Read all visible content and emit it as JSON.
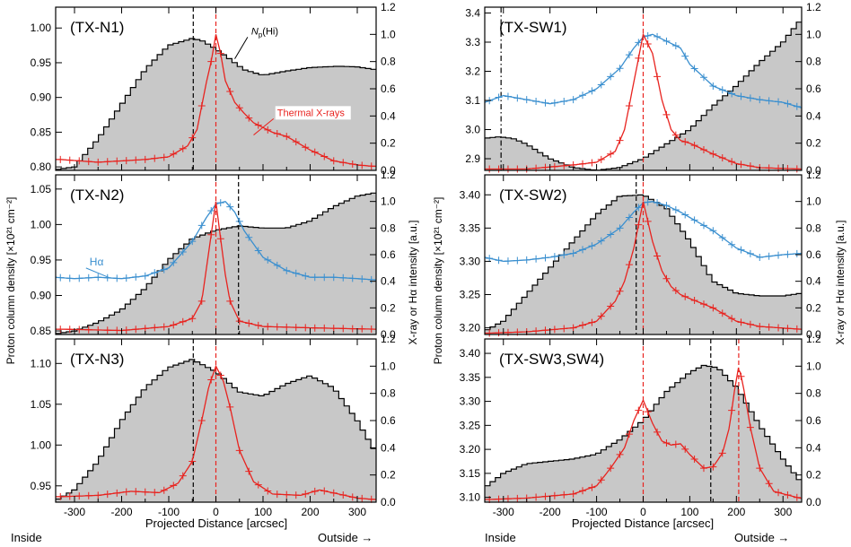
{
  "figure": {
    "left_ylabel": "Proton column density [×10²¹ cm⁻²]",
    "right_ylabel": "X-ray or Hα intensity [a.u.]",
    "xlabel": "Projected Distance [arcsec]",
    "inside_label": "Inside",
    "outside_label": "Outside →"
  },
  "colors": {
    "hist_fill": "#c8c8c8",
    "hist_line": "#000000",
    "xray": "#e8231f",
    "halpha": "#3a8fcf",
    "vline_black": "#000000",
    "vline_red": "#e8231f"
  },
  "chart_data": [
    {
      "id": "TX-N1",
      "type": "line",
      "title": "(TX-N1)",
      "xlim": [
        -340,
        340
      ],
      "xticks": [
        -300,
        -200,
        -100,
        0,
        100,
        200,
        300
      ],
      "ylim": [
        0.795,
        1.03
      ],
      "yticks": [
        0.8,
        0.85,
        0.9,
        0.95,
        1.0
      ],
      "ytick_labels": [
        "0.80",
        "0.85",
        "0.90",
        "0.95",
        "1.00"
      ],
      "y2lim": [
        0.0,
        1.2
      ],
      "y2ticks": [
        0.0,
        0.2,
        0.4,
        0.6,
        0.8,
        1.0,
        1.2
      ],
      "y2tick_labels": [
        "0.0",
        "0.2",
        "0.4",
        "0.6",
        "0.8",
        "1.0",
        "1.2"
      ],
      "show_xlabels": false,
      "vlines": [
        {
          "x": -48,
          "color": "black",
          "style": "dash"
        },
        {
          "x": 0,
          "color": "red",
          "style": "dash"
        }
      ],
      "np_hi": {
        "x": [
          -340,
          -300,
          -250,
          -200,
          -150,
          -100,
          -50,
          -30,
          0,
          30,
          60,
          100,
          150,
          200,
          260,
          300,
          340
        ],
        "y": [
          0.796,
          0.8,
          0.84,
          0.89,
          0.94,
          0.975,
          0.985,
          0.982,
          0.97,
          0.955,
          0.94,
          0.932,
          0.938,
          0.943,
          0.945,
          0.944,
          0.94
        ]
      },
      "xray": {
        "x": [
          -330,
          -250,
          -150,
          -100,
          -60,
          -40,
          -20,
          -10,
          0,
          10,
          20,
          40,
          60,
          80,
          120,
          150,
          200,
          250,
          300,
          335
        ],
        "y": [
          0.08,
          0.06,
          0.08,
          0.1,
          0.18,
          0.3,
          0.65,
          0.8,
          1.0,
          0.86,
          0.66,
          0.5,
          0.42,
          0.35,
          0.28,
          0.25,
          0.15,
          0.07,
          0.04,
          0.03
        ]
      },
      "annotations": [
        {
          "text": "N_p(Hi)",
          "main": "N",
          "sub": "p",
          "tail": "(Hi)",
          "x": 75,
          "y2": 1.0,
          "color": "black",
          "arrow_to_x": 40,
          "arrow_to_y2": 0.82
        },
        {
          "text": "Thermal X-rays",
          "x": 130,
          "y2": 0.4,
          "color": "red",
          "arrow_to_x": 80,
          "arrow_to_y2": 0.26
        }
      ]
    },
    {
      "id": "TX-N2",
      "type": "line",
      "title": "(TX-N2)",
      "xlim": [
        -340,
        340
      ],
      "xticks": [
        -300,
        -200,
        -100,
        0,
        100,
        200,
        300
      ],
      "ylim": [
        0.845,
        1.07
      ],
      "yticks": [
        0.85,
        0.9,
        0.95,
        1.0,
        1.05
      ],
      "ytick_labels": [
        "0.85",
        "0.90",
        "0.95",
        "1.00",
        "1.05"
      ],
      "y2lim": [
        0.0,
        1.2
      ],
      "y2ticks": [
        0.0,
        0.2,
        0.4,
        0.6,
        0.8,
        1.0,
        1.2
      ],
      "y2tick_labels": [
        "0.0",
        "0.2",
        "0.4",
        "0.6",
        "0.8",
        "1.0",
        "1.2"
      ],
      "show_xlabels": false,
      "vlines": [
        {
          "x": 48,
          "color": "black",
          "style": "dash"
        },
        {
          "x": 0,
          "color": "red",
          "style": "dash"
        }
      ],
      "np_hi": {
        "x": [
          -340,
          -300,
          -250,
          -200,
          -150,
          -100,
          -50,
          0,
          50,
          100,
          150,
          200,
          250,
          300,
          340
        ],
        "y": [
          0.846,
          0.85,
          0.862,
          0.88,
          0.91,
          0.95,
          0.98,
          0.992,
          0.998,
          0.995,
          0.995,
          1.005,
          1.025,
          1.04,
          1.045
        ]
      },
      "xray": {
        "x": [
          -330,
          -200,
          -100,
          -50,
          -30,
          -20,
          -10,
          0,
          10,
          20,
          30,
          50,
          100,
          200,
          335
        ],
        "y": [
          0.04,
          0.03,
          0.06,
          0.12,
          0.25,
          0.5,
          0.75,
          1.0,
          0.72,
          0.45,
          0.25,
          0.1,
          0.06,
          0.05,
          0.04
        ]
      },
      "halpha": {
        "x": [
          -340,
          -300,
          -250,
          -200,
          -150,
          -100,
          -50,
          -20,
          0,
          20,
          40,
          60,
          100,
          150,
          200,
          250,
          300,
          340
        ],
        "y": [
          0.43,
          0.42,
          0.43,
          0.42,
          0.44,
          0.5,
          0.7,
          0.88,
          0.98,
          1.0,
          0.92,
          0.78,
          0.58,
          0.48,
          0.43,
          0.43,
          0.42,
          0.41
        ]
      },
      "annotations": [
        {
          "text": "Hα",
          "x": -268,
          "y2": 0.52,
          "color": "blue",
          "arrow_to_x": -225,
          "arrow_to_y2": 0.425
        }
      ]
    },
    {
      "id": "TX-N3",
      "type": "line",
      "title": "(TX-N3)",
      "xlim": [
        -340,
        340
      ],
      "xticks": [
        -300,
        -200,
        -100,
        0,
        100,
        200,
        300
      ],
      "xtick_labels": [
        "-300",
        "-200",
        "-100",
        "0",
        "100",
        "200",
        "300"
      ],
      "ylim": [
        0.93,
        1.13
      ],
      "yticks": [
        0.95,
        1.0,
        1.05,
        1.1
      ],
      "ytick_labels": [
        "0.95",
        "1.00",
        "1.05",
        "1.10"
      ],
      "y2lim": [
        0.0,
        1.2
      ],
      "y2ticks": [
        0.0,
        0.2,
        0.4,
        0.6,
        0.8,
        1.0,
        1.2
      ],
      "y2tick_labels": [
        "0.0",
        "0.2",
        "0.4",
        "0.6",
        "0.8",
        "1.0",
        "1.2"
      ],
      "show_xlabels": true,
      "vlines": [
        {
          "x": -48,
          "color": "black",
          "style": "dash"
        },
        {
          "x": 0,
          "color": "red",
          "style": "dash"
        }
      ],
      "np_hi": {
        "x": [
          -340,
          -300,
          -250,
          -200,
          -150,
          -100,
          -50,
          0,
          50,
          100,
          150,
          200,
          250,
          300,
          340
        ],
        "y": [
          0.932,
          0.945,
          0.98,
          1.03,
          1.07,
          1.095,
          1.105,
          1.09,
          1.065,
          1.06,
          1.075,
          1.085,
          1.07,
          1.03,
          0.99
        ]
      },
      "xray": {
        "x": [
          -330,
          -250,
          -180,
          -120,
          -80,
          -50,
          -30,
          -15,
          0,
          15,
          30,
          50,
          80,
          120,
          180,
          220,
          260,
          300,
          335
        ],
        "y": [
          0.04,
          0.05,
          0.08,
          0.07,
          0.14,
          0.3,
          0.6,
          0.85,
          1.0,
          0.9,
          0.7,
          0.38,
          0.15,
          0.06,
          0.05,
          0.09,
          0.06,
          0.03,
          0.02
        ]
      }
    },
    {
      "id": "TX-SW1",
      "type": "line",
      "title": "(TX-SW1)",
      "xlim": [
        -340,
        340
      ],
      "xticks": [
        -300,
        -200,
        -100,
        0,
        100,
        200,
        300
      ],
      "ylim": [
        2.86,
        3.42
      ],
      "yticks": [
        2.9,
        3.0,
        3.1,
        3.2,
        3.3,
        3.4
      ],
      "ytick_labels": [
        "2.9",
        "3.0",
        "3.1",
        "3.2",
        "3.3",
        "3.4"
      ],
      "y2lim": [
        0.0,
        1.2
      ],
      "y2ticks": [
        0.0,
        0.2,
        0.4,
        0.6,
        0.8,
        1.0,
        1.2
      ],
      "y2tick_labels": [
        "0.0",
        "0.2",
        "0.4",
        "0.6",
        "0.8",
        "1.0",
        "1.2"
      ],
      "show_xlabels": false,
      "vlines": [
        {
          "x": -305,
          "color": "black",
          "style": "dashdot"
        },
        {
          "x": 0,
          "color": "red",
          "style": "dash"
        }
      ],
      "np_hi": {
        "x": [
          -340,
          -310,
          -280,
          -250,
          -200,
          -150,
          -100,
          -50,
          0,
          50,
          100,
          150,
          200,
          250,
          300,
          340
        ],
        "y": [
          2.97,
          2.975,
          2.97,
          2.95,
          2.9,
          2.87,
          2.86,
          2.87,
          2.9,
          2.95,
          3.0,
          3.08,
          3.15,
          3.23,
          3.3,
          3.38
        ]
      },
      "xray": {
        "x": [
          -330,
          -250,
          -150,
          -100,
          -60,
          -40,
          -20,
          0,
          20,
          40,
          60,
          80,
          100,
          150,
          200,
          250,
          335
        ],
        "y": [
          0.01,
          0.01,
          0.04,
          0.06,
          0.14,
          0.3,
          0.65,
          1.0,
          0.86,
          0.52,
          0.3,
          0.22,
          0.2,
          0.12,
          0.05,
          0.02,
          0.01
        ]
      },
      "halpha": {
        "x": [
          -340,
          -300,
          -250,
          -200,
          -150,
          -100,
          -50,
          -20,
          0,
          20,
          50,
          80,
          100,
          150,
          200,
          250,
          300,
          340
        ],
        "y": [
          0.5,
          0.55,
          0.52,
          0.49,
          0.52,
          0.6,
          0.75,
          0.9,
          0.98,
          1.0,
          0.95,
          0.9,
          0.78,
          0.62,
          0.55,
          0.52,
          0.5,
          0.46
        ]
      }
    },
    {
      "id": "TX-SW2",
      "type": "line",
      "title": "(TX-SW2)",
      "xlim": [
        -340,
        340
      ],
      "xticks": [
        -300,
        -200,
        -100,
        0,
        100,
        200,
        300
      ],
      "ylim": [
        3.19,
        3.43
      ],
      "yticks": [
        3.2,
        3.25,
        3.3,
        3.35,
        3.4
      ],
      "ytick_labels": [
        "3.20",
        "3.25",
        "3.30",
        "3.35",
        "3.40"
      ],
      "y2lim": [
        0.0,
        1.2
      ],
      "y2ticks": [
        0.0,
        0.2,
        0.4,
        0.6,
        0.8,
        1.0,
        1.2
      ],
      "y2tick_labels": [
        "0.0",
        "0.2",
        "0.4",
        "0.6",
        "0.8",
        "1.0",
        "1.2"
      ],
      "show_xlabels": false,
      "vlines": [
        {
          "x": -15,
          "color": "black",
          "style": "dash"
        },
        {
          "x": 0,
          "color": "red",
          "style": "dash"
        }
      ],
      "np_hi": {
        "x": [
          -340,
          -300,
          -250,
          -200,
          -150,
          -100,
          -50,
          0,
          50,
          100,
          150,
          200,
          250,
          300,
          340
        ],
        "y": [
          3.195,
          3.21,
          3.25,
          3.29,
          3.33,
          3.37,
          3.398,
          3.4,
          3.38,
          3.33,
          3.27,
          3.252,
          3.248,
          3.248,
          3.252
        ]
      },
      "xray": {
        "x": [
          -330,
          -250,
          -150,
          -100,
          -60,
          -40,
          -20,
          0,
          20,
          40,
          60,
          80,
          100,
          150,
          200,
          250,
          335
        ],
        "y": [
          0.01,
          0.02,
          0.05,
          0.1,
          0.25,
          0.4,
          0.65,
          1.0,
          0.7,
          0.48,
          0.36,
          0.3,
          0.27,
          0.2,
          0.1,
          0.06,
          0.04
        ]
      },
      "halpha": {
        "x": [
          -340,
          -300,
          -250,
          -200,
          -150,
          -100,
          -50,
          -20,
          0,
          20,
          50,
          80,
          100,
          150,
          200,
          250,
          300,
          340
        ],
        "y": [
          0.58,
          0.55,
          0.56,
          0.58,
          0.61,
          0.68,
          0.8,
          0.92,
          0.99,
          1.0,
          0.97,
          0.92,
          0.88,
          0.78,
          0.65,
          0.58,
          0.6,
          0.61
        ]
      }
    },
    {
      "id": "TX-SW3,SW4",
      "type": "line",
      "title": "(TX-SW3,SW4)",
      "xlim": [
        -340,
        340
      ],
      "xticks": [
        -300,
        -200,
        -100,
        0,
        100,
        200,
        300
      ],
      "xtick_labels": [
        "-300",
        "-200",
        "-100",
        "0",
        "100",
        "200",
        "300"
      ],
      "ylim": [
        3.09,
        3.43
      ],
      "yticks": [
        3.1,
        3.15,
        3.2,
        3.25,
        3.3,
        3.35,
        3.4
      ],
      "ytick_labels": [
        "3.10",
        "3.15",
        "3.20",
        "3.25",
        "3.30",
        "3.35",
        "3.40"
      ],
      "y2lim": [
        0.0,
        1.2
      ],
      "y2ticks": [
        0.0,
        0.2,
        0.4,
        0.6,
        0.8,
        1.0,
        1.2
      ],
      "y2tick_labels": [
        "0.0",
        "0.2",
        "0.4",
        "0.6",
        "0.8",
        "1.0",
        "1.2"
      ],
      "show_xlabels": true,
      "vlines": [
        {
          "x": 145,
          "color": "black",
          "style": "dash"
        },
        {
          "x": 0,
          "color": "red",
          "style": "dash"
        },
        {
          "x": 205,
          "color": "red",
          "style": "dash"
        }
      ],
      "np_hi": {
        "x": [
          -340,
          -300,
          -250,
          -200,
          -150,
          -100,
          -50,
          0,
          50,
          100,
          130,
          160,
          200,
          250,
          300,
          340
        ],
        "y": [
          3.12,
          3.15,
          3.17,
          3.175,
          3.18,
          3.19,
          3.22,
          3.26,
          3.32,
          3.36,
          3.375,
          3.37,
          3.33,
          3.25,
          3.18,
          3.13
        ]
      },
      "xray": {
        "x": [
          -330,
          -250,
          -150,
          -100,
          -70,
          -40,
          -20,
          0,
          20,
          40,
          60,
          80,
          100,
          130,
          150,
          170,
          185,
          195,
          205,
          215,
          230,
          250,
          280,
          335
        ],
        "y": [
          0.02,
          0.03,
          0.06,
          0.12,
          0.25,
          0.4,
          0.6,
          0.75,
          0.58,
          0.45,
          0.42,
          0.43,
          0.35,
          0.25,
          0.26,
          0.36,
          0.55,
          0.8,
          1.0,
          0.85,
          0.55,
          0.25,
          0.08,
          0.03
        ]
      }
    }
  ]
}
